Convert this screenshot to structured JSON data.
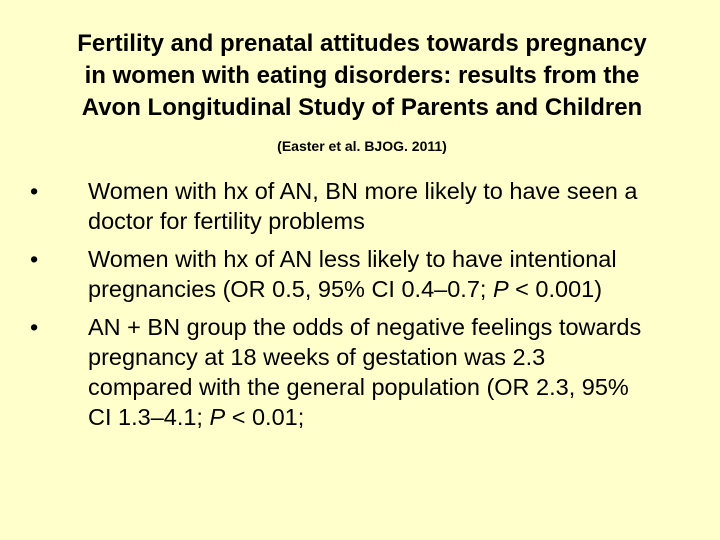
{
  "title": {
    "lines": [
      "Fertility and prenatal attitudes towards pregnancy",
      "in women with eating disorders: results from the",
      "Avon Longitudinal Study of Parents and Children"
    ]
  },
  "subtitle": "(Easter et al. BJOG. 2011)",
  "bullets": [
    {
      "runs": [
        {
          "text": "Women with hx of AN, BN more likely to have seen a doctor for fertility problems",
          "italic": false
        }
      ]
    },
    {
      "runs": [
        {
          "text": "Women with hx of AN less likely to have intentional pregnancies (OR 0.5, 95% CI 0.4–0.7; ",
          "italic": false
        },
        {
          "text": "P",
          "italic": true
        },
        {
          "text": " < 0.001)",
          "italic": false
        }
      ]
    },
    {
      "runs": [
        {
          "text": "AN + BN group the odds of negative feelings towards pregnancy at 18 weeks of gestation was 2.3 compared with the general population (OR 2.3, 95% CI 1.3–4.1; ",
          "italic": false
        },
        {
          "text": "P",
          "italic": true
        },
        {
          "text": " < 0.01;",
          "italic": false
        }
      ]
    }
  ]
}
